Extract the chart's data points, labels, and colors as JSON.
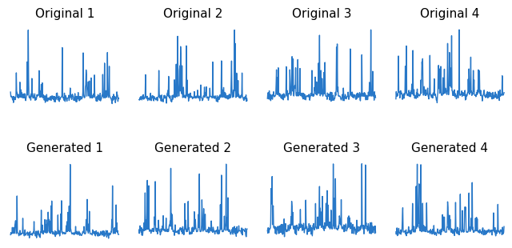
{
  "titles_row1": [
    "Original 1",
    "Original 2",
    "Original 3",
    "Original 4"
  ],
  "titles_row2": [
    "Generated 1",
    "Generated 2",
    "Generated 3",
    "Generated 4"
  ],
  "line_color": "#2878c8",
  "line_width": 1.0,
  "n_points": 300,
  "title_fontsize": 11,
  "background_color": "#ffffff",
  "seeds_row1": [
    101,
    202,
    303,
    404
  ],
  "seeds_row2": [
    505,
    606,
    707,
    808
  ]
}
